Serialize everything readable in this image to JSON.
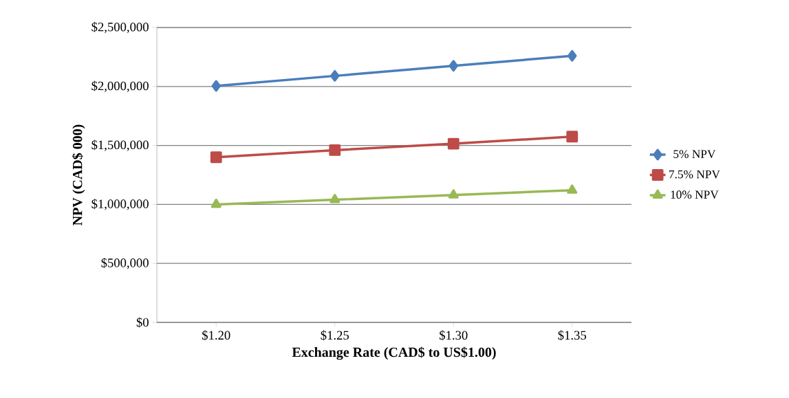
{
  "chart_data": {
    "type": "line",
    "xlabel": "Exchange Rate (CAD$ to US$1.00)",
    "ylabel": "NPV (CAD$ 000)",
    "categories": [
      "$1.20",
      "$1.25",
      "$1.30",
      "$1.35"
    ],
    "series": [
      {
        "name": "5% NPV",
        "color": "#4a7ebb",
        "marker": "diamond",
        "values": [
          2005000,
          2090000,
          2175000,
          2260000
        ]
      },
      {
        "name": "7.5% NPV",
        "color": "#be4b48",
        "marker": "square",
        "values": [
          1400000,
          1460000,
          1515000,
          1575000
        ]
      },
      {
        "name": "10% NPV",
        "color": "#98b954",
        "marker": "triangle",
        "values": [
          1000000,
          1040000,
          1080000,
          1120000
        ]
      }
    ],
    "ylim": [
      0,
      2500000
    ],
    "yticks": [
      {
        "value": 0,
        "label": "$0"
      },
      {
        "value": 500000,
        "label": "$500,000"
      },
      {
        "value": 1000000,
        "label": "$1,000,000"
      },
      {
        "value": 1500000,
        "label": "$1,500,000"
      },
      {
        "value": 2000000,
        "label": "$2,000,000"
      },
      {
        "value": 2500000,
        "label": "$2,500,000"
      }
    ],
    "grid": "y",
    "legend": "right",
    "line_style": "solid"
  }
}
